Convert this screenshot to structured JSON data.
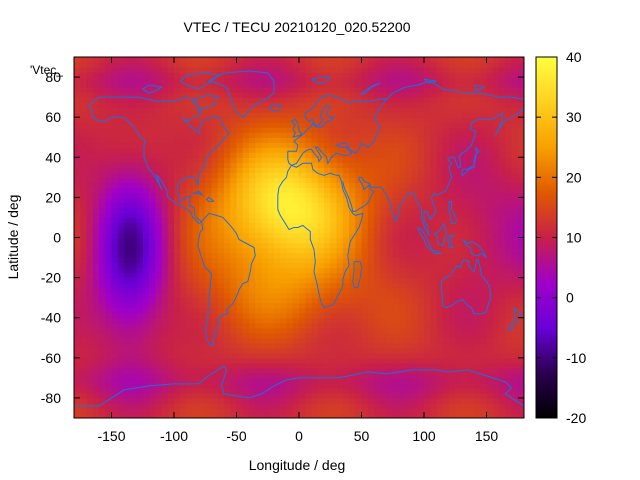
{
  "chart_data": {
    "type": "heatmap",
    "title": "VTEC / TECU 20210120_020.52200",
    "xlabel": "Longitude / deg",
    "ylabel": "Latitude / deg",
    "xlim": [
      -180,
      180
    ],
    "ylim": [
      -90,
      90
    ],
    "xticks": [
      -150,
      -100,
      -50,
      0,
      50,
      100,
      150
    ],
    "yticks": [
      -80,
      -60,
      -40,
      -20,
      0,
      20,
      40,
      60,
      80
    ],
    "colorbar": {
      "range": [
        -20,
        40
      ],
      "ticks": [
        -20,
        -10,
        0,
        10,
        20,
        30,
        40
      ],
      "palette": [
        "#000000",
        "#2a0050",
        "#6a00d8",
        "#a000c8",
        "#c8204a",
        "#e05a00",
        "#f8a000",
        "#ffd020",
        "#ffff40"
      ]
    },
    "legend_label": "'Vtec_",
    "grid": false,
    "map_overlay": "world coastlines",
    "features": [
      {
        "name": "equatorial anomaly maximum",
        "lon": -10,
        "lat": 15,
        "vtec": 38
      },
      {
        "name": "minimum",
        "lon": -135,
        "lat": -8,
        "vtec": -8
      }
    ],
    "background_vtec": 12
  },
  "colors": {
    "coastline": "#1e6fe0",
    "frame": "#000000"
  }
}
